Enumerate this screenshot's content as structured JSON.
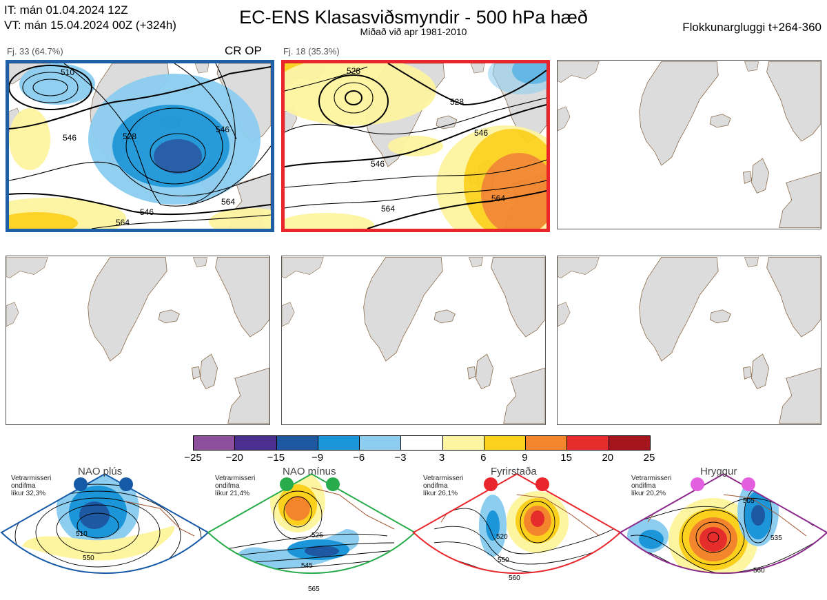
{
  "header": {
    "it_line": "IT: mán 01.04.2024 12Z",
    "vt_line": "VT: mán 15.04.2024 00Z  (+324h)",
    "title": "EC-ENS Klasasviðsmyndir - 500 hPa hæð",
    "subtitle": "Miðað við apr 1981-2010",
    "window": "Flokkunargluggi t+264-360"
  },
  "panels": [
    {
      "label": "Fj. 33 (64.7%)",
      "tag": "CR OP",
      "contours": [
        "510",
        "528",
        "546",
        "546",
        "546",
        "564",
        "564"
      ]
    },
    {
      "label": "Fj. 18 (35.3%)",
      "tag": "",
      "contours": [
        "528",
        "528",
        "546",
        "546",
        "564",
        "564"
      ]
    }
  ],
  "colorbar": {
    "colors": [
      "#8e4f9d",
      "#4a2f90",
      "#1e57a2",
      "#1c96d8",
      "#8ccdf0",
      "#ffffff",
      "#fdf5a0",
      "#fbd11e",
      "#f3862d",
      "#e52d2b",
      "#a5151c"
    ],
    "ticks": [
      "−25",
      "−20",
      "−15",
      "−9",
      "−6",
      "−3",
      "3",
      "6",
      "9",
      "15",
      "20",
      "25"
    ]
  },
  "regimes": [
    {
      "name": "NAO plús",
      "season": "Vetrarmisseri",
      "label2": "ondifma",
      "prob": "líkur 32,3%",
      "color": "#1659a6",
      "contours": [
        "510",
        "550"
      ]
    },
    {
      "name": "NAO mínus",
      "season": "Vetrarmisseri",
      "label2": "ondifma",
      "prob": "líkur 21,4%",
      "color": "#27ab4b",
      "contours": [
        "525",
        "545",
        "565"
      ]
    },
    {
      "name": "Fyrirstaða",
      "season": "Vetrarmisseri",
      "label2": "ondifma",
      "prob": "líkur 26,1%",
      "color": "#e8262b",
      "contours": [
        "520",
        "550",
        "560"
      ]
    },
    {
      "name": "Hryggur",
      "season": "Vetrarmisseri",
      "label2": "ondifma",
      "prob": "líkur 20,2%",
      "color": "#e35fe0",
      "contours": [
        "505",
        "535",
        "560"
      ]
    }
  ]
}
